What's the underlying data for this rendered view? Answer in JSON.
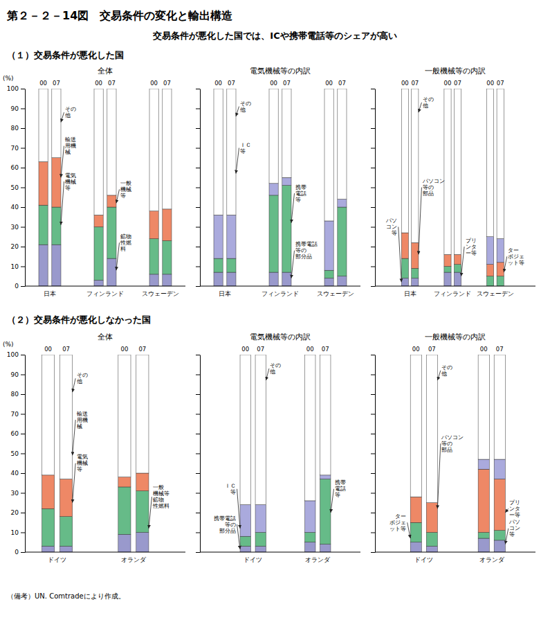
{
  "title": "第２－２－14図　交易条件の変化と輸出構造",
  "subtitle": "交易条件が悪化した国では、ICや携帯電話等のシェアが高い",
  "section_titles": [
    "（１）交易条件が悪化した国",
    "（２）交易条件が悪化しなかった国"
  ],
  "footnote": "（備考）UN. Comtradeにより作成。",
  "chart_data": [
    {
      "type": "bar",
      "title": "全体",
      "ylabel": "(%)",
      "groups": [
        "日本",
        "フィンランド",
        "スウェーデン"
      ],
      "categories": [
        "00",
        "07",
        "00",
        "07",
        "00",
        "07"
      ],
      "series": [
        {
          "color": "#9999cc",
          "values": [
            21,
            21,
            3,
            14,
            6,
            6
          ]
        },
        {
          "color": "#66bb88",
          "values": [
            20,
            19,
            27,
            26,
            18,
            17
          ]
        },
        {
          "color": "#ee8866",
          "values": [
            22,
            25,
            6,
            6,
            14,
            16
          ]
        },
        {
          "color": "#ffffff",
          "values": [
            37,
            35,
            64,
            54,
            62,
            61
          ]
        }
      ],
      "stacked": true,
      "grid": false,
      "ylim": [
        0,
        100
      ],
      "yticks": [
        0,
        10,
        20,
        30,
        40,
        50,
        60,
        70,
        80,
        90,
        100
      ],
      "annotations": [
        {
          "text": "その\n他",
          "bar": 1,
          "y": 83,
          "text_y": 88
        },
        {
          "text": "輸送\n用機\n械",
          "bar": 1,
          "y": 55,
          "text_y": 71
        },
        {
          "text": "電気\n機械\n等",
          "bar": 1,
          "y": 31,
          "text_y": 53
        },
        {
          "text": "一般\n機械\n等",
          "bar": 3,
          "y": 42,
          "text_y": 49
        },
        {
          "text": "鉱物\n性燃\n料",
          "bar": 3,
          "y": 8,
          "text_y": 22
        }
      ]
    },
    {
      "type": "bar",
      "title": "電気機械等の内訳",
      "groups": [
        "日本",
        "フィンランド",
        "スウェーデン"
      ],
      "categories": [
        "00",
        "07",
        "00",
        "07",
        "00",
        "07"
      ],
      "series": [
        {
          "color": "#9999cc",
          "values": [
            7,
            7,
            7,
            7,
            4,
            5
          ]
        },
        {
          "color": "#66bb88",
          "values": [
            7,
            7,
            39,
            44,
            4,
            35
          ]
        },
        {
          "color": "#aaaadd",
          "values": [
            22,
            22,
            6,
            4,
            25,
            4
          ]
        },
        {
          "color": "#ffffff",
          "values": [
            64,
            64,
            48,
            45,
            67,
            56
          ]
        }
      ],
      "stacked": true,
      "grid": false,
      "tick_labels": "x",
      "ylim": [
        0,
        100
      ],
      "yticks": [
        0,
        10,
        20,
        30,
        40,
        50,
        60,
        70,
        80,
        90,
        100
      ],
      "annotations": [
        {
          "text": "その\n他",
          "bar": 1,
          "y": 86,
          "text_y": 91
        },
        {
          "text": "ＩＣ\n等",
          "bar": 1,
          "y": 57,
          "text_y": 70
        },
        {
          "text": "携帯電話\n等の\n部分品",
          "bar": 3,
          "y": 4,
          "text_y": 18
        },
        {
          "text": "携帯\n電話\n等",
          "bar": 3,
          "y": 32,
          "text_y": 47
        }
      ]
    },
    {
      "type": "bar",
      "title": "一般機械等の内訳",
      "groups": [
        "日本",
        "フィンランド",
        "スウェーデン"
      ],
      "categories": [
        "00",
        "07",
        "00",
        "07",
        "00",
        "07"
      ],
      "series": [
        {
          "color": "#9999cc",
          "values": [
            4,
            4,
            7,
            7,
            0,
            0
          ]
        },
        {
          "color": "#66bb88",
          "values": [
            10,
            5,
            3,
            4,
            5,
            5
          ]
        },
        {
          "color": "#ee8866",
          "values": [
            13,
            13,
            6,
            5,
            6,
            7
          ]
        },
        {
          "color": "#aaaadd",
          "values": [
            0,
            0,
            0,
            0,
            14,
            12
          ]
        },
        {
          "color": "#ffffff",
          "values": [
            73,
            78,
            84,
            84,
            75,
            76
          ]
        }
      ],
      "stacked": true,
      "grid": false,
      "tick_labels": "x",
      "ylim": [
        0,
        100
      ],
      "yticks": [
        0,
        10,
        20,
        30,
        40,
        50,
        60,
        70,
        80,
        90,
        100
      ],
      "annotations": [
        {
          "text": "その\n他",
          "bar": 1,
          "y": 88,
          "text_y": 93
        },
        {
          "text": "パソコン\n等の\n部品",
          "bar": 1,
          "y": 16,
          "text_y": 50
        },
        {
          "text": "パソ\nコン\n等",
          "bar": 0,
          "y": 2,
          "text_y": 30
        },
        {
          "text": "プリ\nンタ\nー等",
          "bar": 3,
          "y": 5,
          "text_y": 20
        },
        {
          "text": "ター\nボジェ\nット等",
          "bar": 5,
          "y": 7,
          "text_y": 15
        }
      ]
    },
    {
      "type": "bar",
      "title": "全体",
      "ylabel": "(%)",
      "groups": [
        "ドイツ",
        "オランダ"
      ],
      "categories": [
        "00",
        "07",
        "00",
        "07"
      ],
      "series": [
        {
          "color": "#9999cc",
          "values": [
            3,
            3,
            9,
            10
          ]
        },
        {
          "color": "#66bb88",
          "values": [
            19,
            15,
            24,
            21
          ]
        },
        {
          "color": "#ee8866",
          "values": [
            17,
            19,
            5,
            9
          ]
        },
        {
          "color": "#ffffff",
          "values": [
            61,
            63,
            62,
            60
          ]
        }
      ],
      "stacked": true,
      "grid": false,
      "ylim": [
        0,
        100
      ],
      "yticks": [
        0,
        10,
        20,
        30,
        40,
        50,
        60,
        70,
        80,
        90,
        100
      ],
      "annotations": [
        {
          "text": "その\n他",
          "bar": 1,
          "y": 81,
          "text_y": 88
        },
        {
          "text": "輸送\n用機\n械",
          "bar": 1,
          "y": 49,
          "text_y": 67
        },
        {
          "text": "電気\n機械\n等",
          "bar": 1,
          "y": 25,
          "text_y": 45
        },
        {
          "text": "一般\n機械等\n鉱物\n性燃料",
          "bar": 3,
          "y": 12,
          "text_y": 28
        }
      ]
    },
    {
      "type": "bar",
      "title": "電気機械等の内訳",
      "groups": [
        "ドイツ",
        "オランダ"
      ],
      "categories": [
        "00",
        "07",
        "00",
        "07"
      ],
      "series": [
        {
          "color": "#9999cc",
          "values": [
            3,
            3,
            5,
            4
          ]
        },
        {
          "color": "#66bb88",
          "values": [
            5,
            7,
            5,
            33
          ]
        },
        {
          "color": "#aaaadd",
          "values": [
            16,
            14,
            16,
            2
          ]
        },
        {
          "color": "#ffffff",
          "values": [
            76,
            76,
            74,
            61
          ]
        }
      ],
      "stacked": true,
      "grid": false,
      "tick_labels": "x",
      "ylim": [
        0,
        100
      ],
      "yticks": [
        0,
        10,
        20,
        30,
        40,
        50,
        60,
        70,
        80,
        90,
        100
      ],
      "annotations": [
        {
          "text": "その\n他",
          "bar": 1,
          "y": 87,
          "text_y": 93
        },
        {
          "text": "ＩＣ\n等",
          "bar": 0,
          "y": 12,
          "text_y": 32
        },
        {
          "text": "携帯電話\n等の\n部分品",
          "bar": 0,
          "y": 1.5,
          "text_y": 14
        },
        {
          "text": "携帯\n電話\n等",
          "bar": 3,
          "y": 20,
          "text_y": 32
        }
      ]
    },
    {
      "type": "bar",
      "title": "一般機械等の内訳",
      "groups": [
        "ドイツ",
        "オランダ"
      ],
      "categories": [
        "00",
        "07",
        "00",
        "07"
      ],
      "series": [
        {
          "color": "#9999cc",
          "values": [
            5,
            3,
            7,
            6
          ]
        },
        {
          "color": "#66bb88",
          "values": [
            10,
            7,
            3,
            5
          ]
        },
        {
          "color": "#ee8866",
          "values": [
            13,
            15,
            32,
            26
          ]
        },
        {
          "color": "#aaaadd",
          "values": [
            0,
            0,
            5,
            10
          ]
        },
        {
          "color": "#ffffff",
          "values": [
            72,
            75,
            53,
            53
          ]
        }
      ],
      "stacked": true,
      "grid": false,
      "tick_labels": "x",
      "ylim": [
        0,
        100
      ],
      "yticks": [
        0,
        10,
        20,
        30,
        40,
        50,
        60,
        70,
        80,
        90,
        100
      ],
      "annotations": [
        {
          "text": "その\n他",
          "bar": 1,
          "y": 87,
          "text_y": 92
        },
        {
          "text": "パソコン\n等の\n部品",
          "bar": 1,
          "y": 22,
          "text_y": 55
        },
        {
          "text": "ター\nボジェ\nット等",
          "bar": 0,
          "y": 7,
          "text_y": 15
        },
        {
          "text": "パソ\nコン\n等",
          "bar": 3,
          "y": 4,
          "text_y": 12
        },
        {
          "text": "プリ\nンタ\nー等",
          "bar": 3,
          "y": 20,
          "text_y": 22
        }
      ]
    }
  ]
}
